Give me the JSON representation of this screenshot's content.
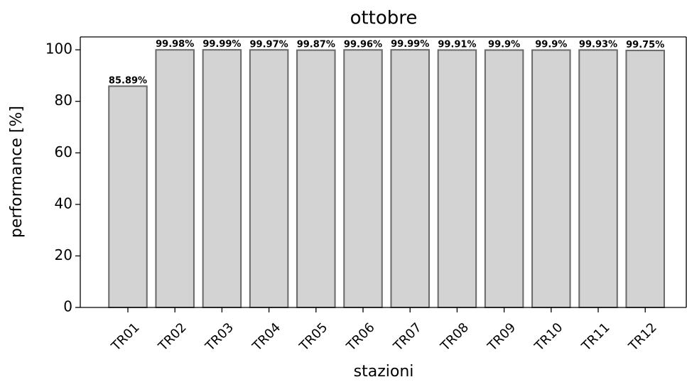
{
  "chart_data": {
    "type": "bar",
    "title": "ottobre",
    "xlabel": "stazioni",
    "ylabel": "performance [%]",
    "categories": [
      "TR01",
      "TR02",
      "TR03",
      "TR04",
      "TR05",
      "TR06",
      "TR07",
      "TR08",
      "TR09",
      "TR10",
      "TR11",
      "TR12"
    ],
    "values": [
      85.89,
      99.98,
      99.99,
      99.97,
      99.87,
      99.96,
      99.99,
      99.91,
      99.9,
      99.9,
      99.93,
      99.75
    ],
    "value_labels": [
      "85.89%",
      "99.98%",
      "99.99%",
      "99.97%",
      "99.87%",
      "99.96%",
      "99.99%",
      "99.91%",
      "99.9%",
      "99.9%",
      "99.93%",
      "99.75%"
    ],
    "color": "#d3d3d3",
    "edgecolor": "#696969",
    "ylim": [
      0,
      105
    ],
    "yticks": [
      0,
      20,
      40,
      60,
      80,
      100
    ]
  }
}
